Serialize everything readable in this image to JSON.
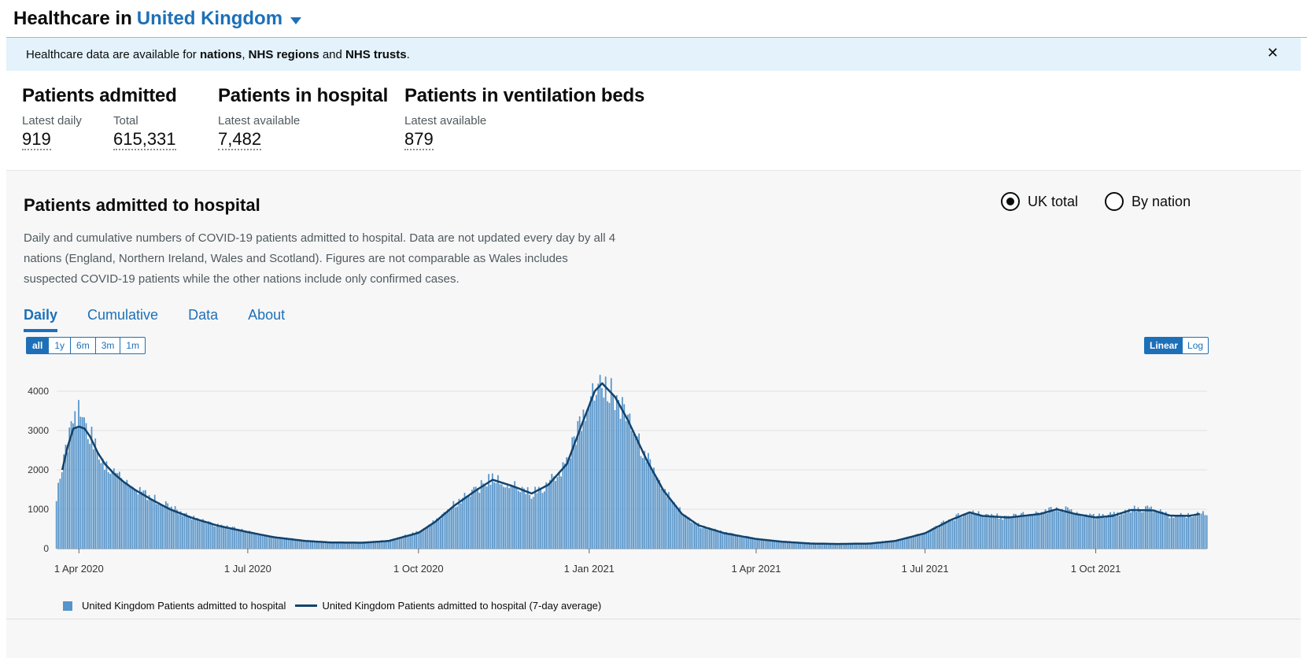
{
  "header": {
    "prefix": "Healthcare in",
    "place": "United Kingdom"
  },
  "banner": {
    "t1": "Healthcare data are available for ",
    "b1": "nations",
    "t2": ", ",
    "b2": "NHS regions",
    "t3": " and ",
    "b3": "NHS trusts",
    "t4": ".",
    "close": "✕"
  },
  "headlines": {
    "admitted": {
      "title": "Patients admitted",
      "daily_label": "Latest daily",
      "daily_value": "919",
      "total_label": "Total",
      "total_value": "615,331"
    },
    "hospital": {
      "title": "Patients in hospital",
      "label": "Latest available",
      "value": "7,482"
    },
    "ventilation": {
      "title": "Patients in ventilation beds",
      "label": "Latest available",
      "value": "879"
    }
  },
  "card": {
    "title": "Patients admitted to hospital",
    "radio_total": "UK total",
    "radio_nation": "By nation",
    "description": "Daily and cumulative numbers of COVID-19 patients admitted to hospital. Data are not updated every day by all 4 nations (England, Northern Ireland, Wales and Scotland). Figures are not comparable as Wales includes suspected COVID-19 patients while the other nations include only confirmed cases.",
    "tabs": [
      "Daily",
      "Cumulative",
      "Data",
      "About"
    ],
    "ranges": [
      "all",
      "1y",
      "6m",
      "3m",
      "1m"
    ],
    "scales": [
      "Linear",
      "Log"
    ]
  },
  "colors": {
    "bar": "#5694ca",
    "line": "#12436d",
    "accent": "#1d70b8"
  },
  "chart_data": {
    "type": "bar",
    "x_start": "2020-03-20",
    "x_end": "2021-11-30",
    "ylim": [
      0,
      4500
    ],
    "yticks": [
      0,
      1000,
      2000,
      3000,
      4000
    ],
    "xticks": [
      {
        "date": "2020-04-01",
        "label": "1 Apr 2020"
      },
      {
        "date": "2020-07-01",
        "label": "1 Jul 2020"
      },
      {
        "date": "2020-10-01",
        "label": "1 Oct 2020"
      },
      {
        "date": "2021-01-01",
        "label": "1 Jan 2021"
      },
      {
        "date": "2021-04-01",
        "label": "1 Apr 2021"
      },
      {
        "date": "2021-07-01",
        "label": "1 Jul 2021"
      },
      {
        "date": "2021-10-01",
        "label": "1 Oct 2021"
      }
    ],
    "series": [
      {
        "name": "United Kingdom Patients admitted to hospital",
        "type": "bar",
        "anchors": [
          [
            "2020-03-20",
            1300
          ],
          [
            "2020-03-23",
            2000
          ],
          [
            "2020-03-26",
            2600
          ],
          [
            "2020-03-29",
            3200
          ],
          [
            "2020-04-01",
            3450
          ],
          [
            "2020-04-04",
            3050
          ],
          [
            "2020-04-07",
            2950
          ],
          [
            "2020-04-11",
            2500
          ],
          [
            "2020-04-15",
            2200
          ],
          [
            "2020-04-20",
            1950
          ],
          [
            "2020-04-25",
            1750
          ],
          [
            "2020-05-01",
            1550
          ],
          [
            "2020-05-10",
            1300
          ],
          [
            "2020-05-20",
            1050
          ],
          [
            "2020-06-01",
            800
          ],
          [
            "2020-06-15",
            600
          ],
          [
            "2020-07-01",
            430
          ],
          [
            "2020-07-15",
            300
          ],
          [
            "2020-08-01",
            200
          ],
          [
            "2020-08-15",
            160
          ],
          [
            "2020-09-01",
            150
          ],
          [
            "2020-09-15",
            200
          ],
          [
            "2020-10-01",
            420
          ],
          [
            "2020-10-10",
            700
          ],
          [
            "2020-10-20",
            1100
          ],
          [
            "2020-11-01",
            1500
          ],
          [
            "2020-11-10",
            1800
          ],
          [
            "2020-11-20",
            1600
          ],
          [
            "2020-12-01",
            1400
          ],
          [
            "2020-12-10",
            1650
          ],
          [
            "2020-12-20",
            2200
          ],
          [
            "2020-12-28",
            3200
          ],
          [
            "2021-01-04",
            4050
          ],
          [
            "2021-01-08",
            4300
          ],
          [
            "2021-01-15",
            3900
          ],
          [
            "2021-01-22",
            3300
          ],
          [
            "2021-02-01",
            2300
          ],
          [
            "2021-02-10",
            1500
          ],
          [
            "2021-02-20",
            900
          ],
          [
            "2021-03-01",
            600
          ],
          [
            "2021-03-15",
            400
          ],
          [
            "2021-04-01",
            250
          ],
          [
            "2021-04-15",
            180
          ],
          [
            "2021-05-01",
            130
          ],
          [
            "2021-05-15",
            120
          ],
          [
            "2021-06-01",
            130
          ],
          [
            "2021-06-15",
            200
          ],
          [
            "2021-07-01",
            400
          ],
          [
            "2021-07-15",
            750
          ],
          [
            "2021-07-25",
            950
          ],
          [
            "2021-08-01",
            850
          ],
          [
            "2021-08-15",
            800
          ],
          [
            "2021-09-01",
            900
          ],
          [
            "2021-09-10",
            1050
          ],
          [
            "2021-09-20",
            900
          ],
          [
            "2021-10-01",
            800
          ],
          [
            "2021-10-10",
            850
          ],
          [
            "2021-10-20",
            1000
          ],
          [
            "2021-11-01",
            1000
          ],
          [
            "2021-11-10",
            850
          ],
          [
            "2021-11-20",
            850
          ],
          [
            "2021-11-30",
            900
          ]
        ]
      },
      {
        "name": "United Kingdom Patients admitted to hospital (7-day average)",
        "type": "line",
        "anchors": [
          [
            "2020-03-23",
            2000
          ],
          [
            "2020-03-26",
            2600
          ],
          [
            "2020-03-29",
            3050
          ],
          [
            "2020-04-01",
            3100
          ],
          [
            "2020-04-04",
            3050
          ],
          [
            "2020-04-07",
            2850
          ],
          [
            "2020-04-11",
            2450
          ],
          [
            "2020-04-15",
            2150
          ],
          [
            "2020-04-20",
            1900
          ],
          [
            "2020-04-25",
            1700
          ],
          [
            "2020-05-01",
            1500
          ],
          [
            "2020-05-10",
            1250
          ],
          [
            "2020-05-20",
            1000
          ],
          [
            "2020-06-01",
            780
          ],
          [
            "2020-06-15",
            580
          ],
          [
            "2020-07-01",
            420
          ],
          [
            "2020-07-15",
            290
          ],
          [
            "2020-08-01",
            195
          ],
          [
            "2020-08-15",
            155
          ],
          [
            "2020-09-01",
            150
          ],
          [
            "2020-09-15",
            195
          ],
          [
            "2020-10-01",
            400
          ],
          [
            "2020-10-10",
            680
          ],
          [
            "2020-10-20",
            1080
          ],
          [
            "2020-11-01",
            1480
          ],
          [
            "2020-11-10",
            1750
          ],
          [
            "2020-11-20",
            1600
          ],
          [
            "2020-12-01",
            1400
          ],
          [
            "2020-12-10",
            1620
          ],
          [
            "2020-12-20",
            2150
          ],
          [
            "2020-12-28",
            3150
          ],
          [
            "2021-01-04",
            4000
          ],
          [
            "2021-01-08",
            4200
          ],
          [
            "2021-01-15",
            3850
          ],
          [
            "2021-01-22",
            3250
          ],
          [
            "2021-02-01",
            2250
          ],
          [
            "2021-02-10",
            1480
          ],
          [
            "2021-02-20",
            880
          ],
          [
            "2021-03-01",
            590
          ],
          [
            "2021-03-15",
            390
          ],
          [
            "2021-04-01",
            245
          ],
          [
            "2021-04-15",
            175
          ],
          [
            "2021-05-01",
            128
          ],
          [
            "2021-05-15",
            118
          ],
          [
            "2021-06-01",
            128
          ],
          [
            "2021-06-15",
            195
          ],
          [
            "2021-07-01",
            390
          ],
          [
            "2021-07-15",
            730
          ],
          [
            "2021-07-25",
            920
          ],
          [
            "2021-08-01",
            830
          ],
          [
            "2021-08-15",
            790
          ],
          [
            "2021-09-01",
            880
          ],
          [
            "2021-09-10",
            1000
          ],
          [
            "2021-09-20",
            880
          ],
          [
            "2021-10-01",
            790
          ],
          [
            "2021-10-10",
            830
          ],
          [
            "2021-10-20",
            980
          ],
          [
            "2021-11-01",
            970
          ],
          [
            "2021-11-10",
            840
          ],
          [
            "2021-11-20",
            830
          ],
          [
            "2021-11-26",
            880
          ]
        ]
      }
    ],
    "legend": [
      "United Kingdom Patients admitted to hospital",
      "United Kingdom Patients admitted to hospital (7-day average)"
    ],
    "legend_position": "bottom-left",
    "grid": true
  }
}
